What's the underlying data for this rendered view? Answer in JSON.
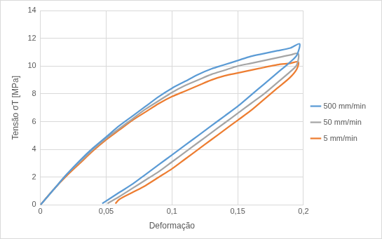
{
  "chart_data": {
    "type": "line",
    "x_label": "Deformação",
    "y_label": "Tensão σT [MPa]",
    "xlim": [
      0,
      0.2
    ],
    "xticks": [
      {
        "value": 0,
        "label": "0"
      },
      {
        "value": 0.05,
        "label": "0,05"
      },
      {
        "value": 0.1,
        "label": "0,1"
      },
      {
        "value": 0.15,
        "label": "0,15"
      },
      {
        "value": 0.2,
        "label": "0,2"
      }
    ],
    "ylim": [
      0,
      14
    ],
    "yticks": [
      0,
      2,
      4,
      6,
      8,
      10,
      12,
      14
    ],
    "grid": true,
    "legend": "right",
    "series": [
      {
        "name": "500 mm/min",
        "color": "#5B9BD5",
        "x": [
          0,
          0.01,
          0.02,
          0.03,
          0.04,
          0.05,
          0.06,
          0.07,
          0.08,
          0.09,
          0.1,
          0.11,
          0.12,
          0.13,
          0.14,
          0.15,
          0.16,
          0.17,
          0.18,
          0.19,
          0.197,
          0.195,
          0.19,
          0.18,
          0.17,
          0.16,
          0.15,
          0.14,
          0.13,
          0.12,
          0.11,
          0.1,
          0.09,
          0.08,
          0.07,
          0.06,
          0.047
        ],
        "values": [
          0,
          1.1,
          2.2,
          3.2,
          4.1,
          4.9,
          5.7,
          6.4,
          7.1,
          7.8,
          8.4,
          8.9,
          9.4,
          9.8,
          10.1,
          10.4,
          10.7,
          10.9,
          11.1,
          11.3,
          11.6,
          10.8,
          10.3,
          9.5,
          8.7,
          7.9,
          7.1,
          6.4,
          5.7,
          5.0,
          4.3,
          3.6,
          2.9,
          2.2,
          1.5,
          0.9,
          0.1
        ]
      },
      {
        "name": "50 mm/min",
        "color": "#A5A5A5",
        "x": [
          0,
          0.01,
          0.02,
          0.03,
          0.04,
          0.05,
          0.06,
          0.07,
          0.08,
          0.09,
          0.1,
          0.11,
          0.12,
          0.13,
          0.14,
          0.15,
          0.16,
          0.17,
          0.18,
          0.19,
          0.196,
          0.195,
          0.19,
          0.18,
          0.17,
          0.16,
          0.15,
          0.14,
          0.13,
          0.12,
          0.11,
          0.1,
          0.09,
          0.08,
          0.07,
          0.06,
          0.051
        ],
        "values": [
          0,
          1.1,
          2.2,
          3.1,
          4.0,
          4.8,
          5.5,
          6.2,
          6.9,
          7.5,
          8.1,
          8.6,
          9.0,
          9.4,
          9.7,
          10.0,
          10.2,
          10.4,
          10.6,
          10.8,
          10.9,
          10.1,
          9.6,
          8.8,
          8.0,
          7.3,
          6.6,
          5.9,
          5.2,
          4.5,
          3.8,
          3.1,
          2.4,
          1.8,
          1.2,
          0.6,
          0.1
        ]
      },
      {
        "name": "5 mm/min",
        "color": "#ED7D31",
        "x": [
          0,
          0.01,
          0.02,
          0.03,
          0.04,
          0.05,
          0.06,
          0.07,
          0.08,
          0.09,
          0.1,
          0.11,
          0.12,
          0.13,
          0.14,
          0.15,
          0.16,
          0.17,
          0.18,
          0.19,
          0.196,
          0.195,
          0.19,
          0.18,
          0.17,
          0.16,
          0.15,
          0.14,
          0.13,
          0.12,
          0.11,
          0.1,
          0.09,
          0.08,
          0.07,
          0.06,
          0.057
        ],
        "values": [
          0,
          1.1,
          2.1,
          3.0,
          3.9,
          4.7,
          5.4,
          6.1,
          6.7,
          7.3,
          7.8,
          8.2,
          8.6,
          9.0,
          9.3,
          9.5,
          9.7,
          9.9,
          10.1,
          10.2,
          10.3,
          9.8,
          9.2,
          8.4,
          7.6,
          6.8,
          6.1,
          5.4,
          4.7,
          4.0,
          3.3,
          2.6,
          2.0,
          1.4,
          0.9,
          0.4,
          0.1
        ]
      }
    ]
  }
}
